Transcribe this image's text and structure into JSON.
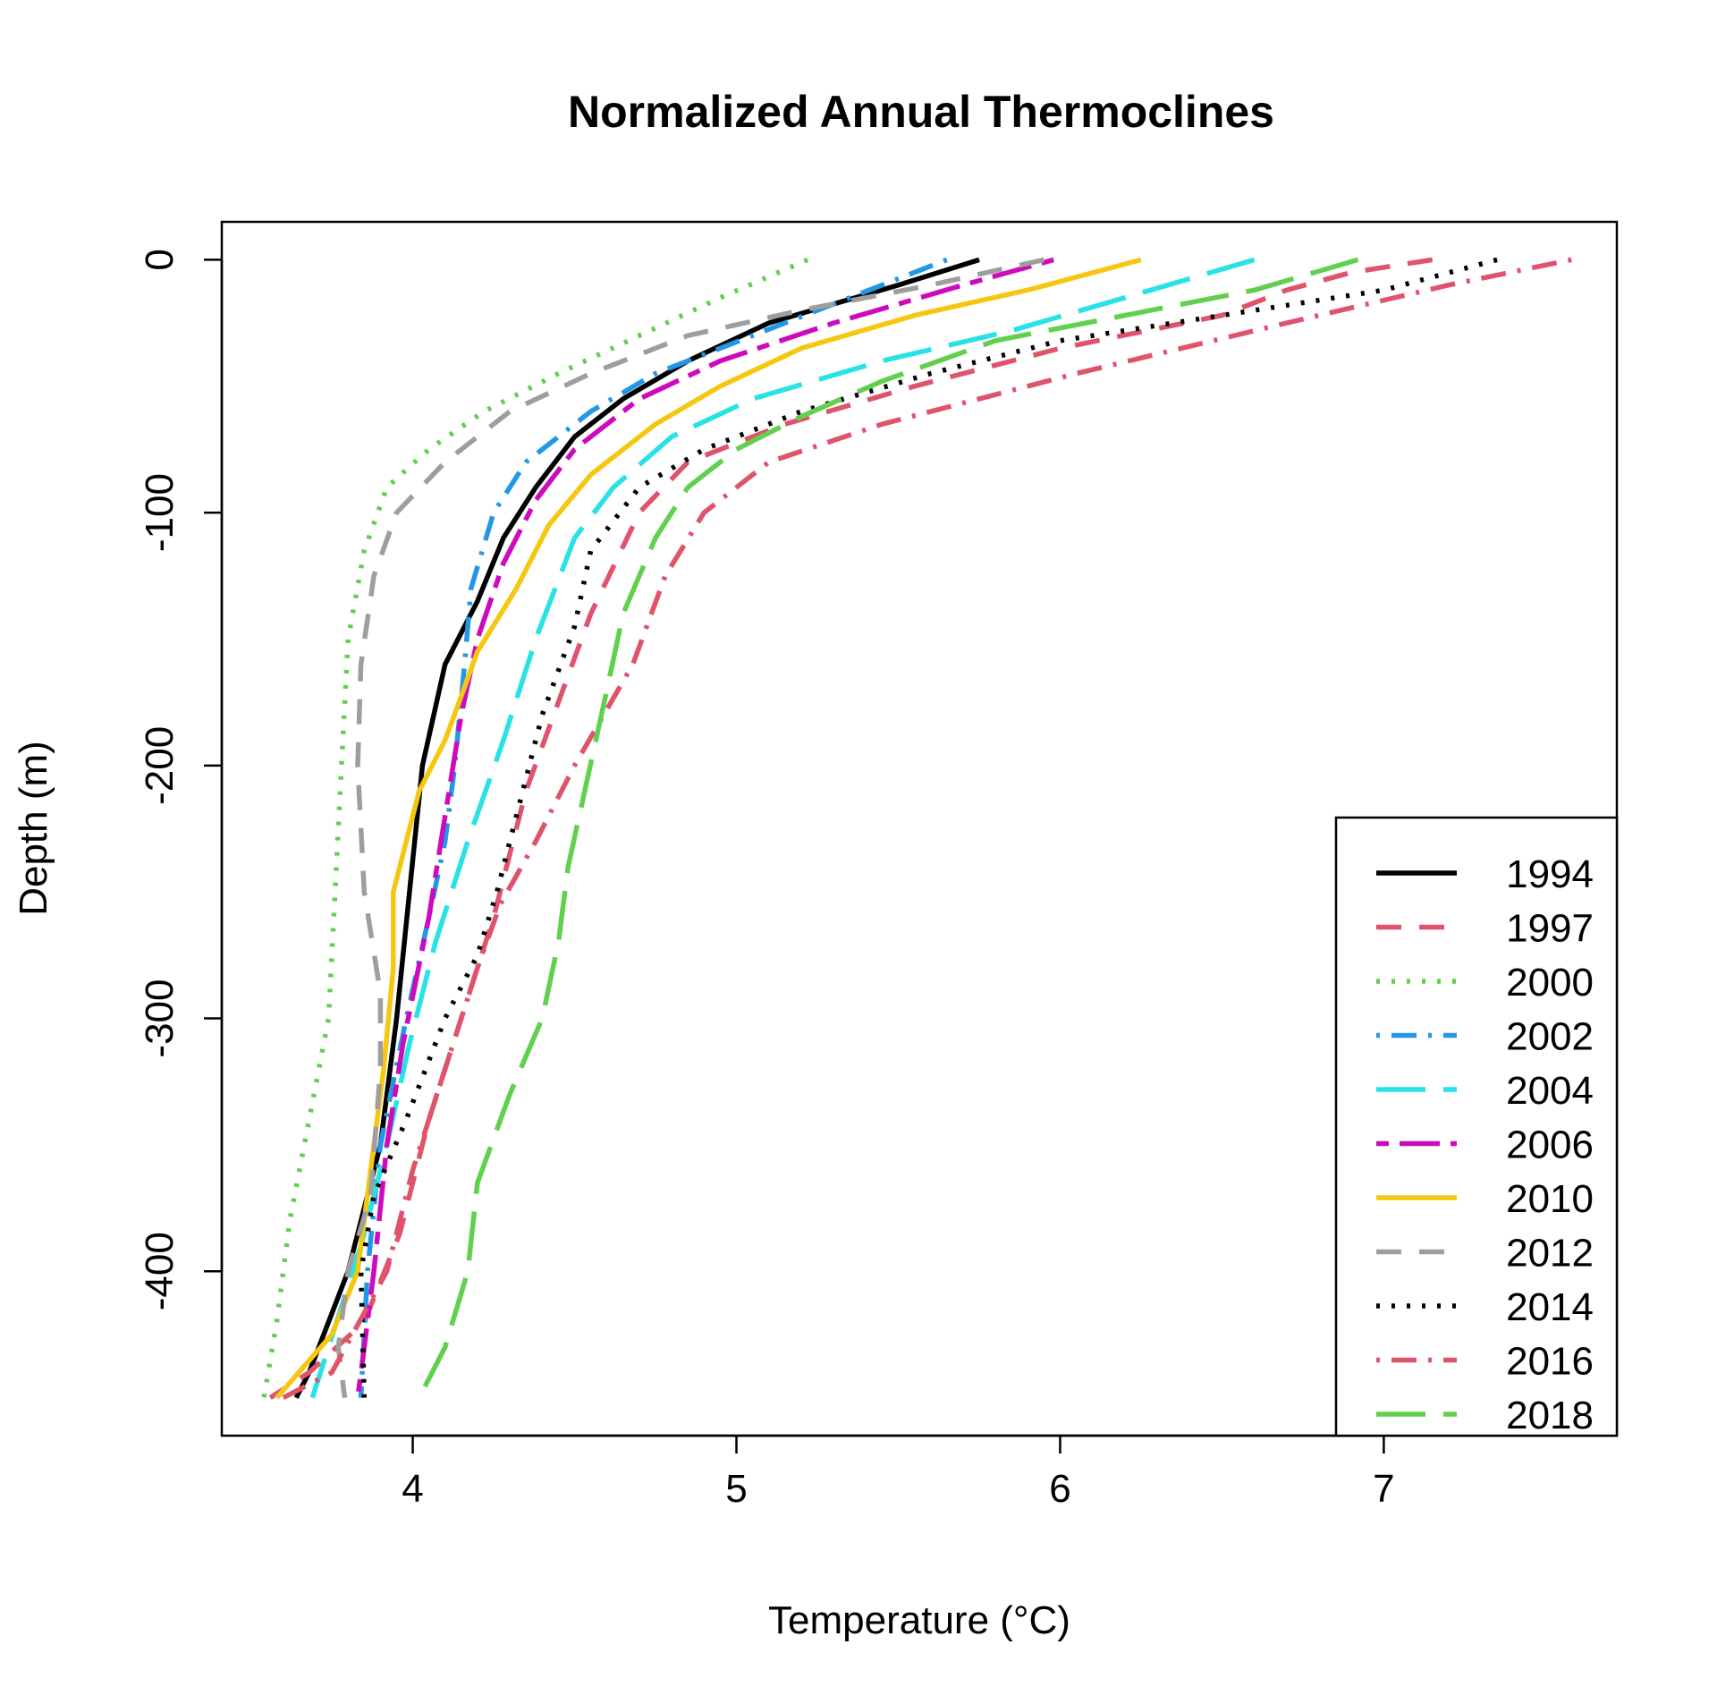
{
  "chart_data": {
    "type": "line",
    "title": "Normalized Annual Thermoclines",
    "xlabel": "Temperature (°C)",
    "ylabel": "Depth (m)",
    "xlim": [
      3.41,
      7.72
    ],
    "ylim": [
      -465,
      15
    ],
    "xticks": [
      4,
      5,
      6,
      7
    ],
    "yticks": [
      0,
      -100,
      -200,
      -300,
      -400
    ],
    "grid": false,
    "legend_position": "bottom-right",
    "series": [
      {
        "name": "1994",
        "color": "#000000",
        "dash": "solid",
        "points": [
          [
            5.75,
            0
          ],
          [
            5.5,
            -10
          ],
          [
            5.1,
            -25
          ],
          [
            4.85,
            -40
          ],
          [
            4.65,
            -55
          ],
          [
            4.5,
            -70
          ],
          [
            4.38,
            -90
          ],
          [
            4.28,
            -110
          ],
          [
            4.2,
            -135
          ],
          [
            4.1,
            -160
          ],
          [
            4.03,
            -200
          ],
          [
            3.99,
            -250
          ],
          [
            3.95,
            -300
          ],
          [
            3.9,
            -350
          ],
          [
            3.8,
            -400
          ],
          [
            3.68,
            -440
          ],
          [
            3.64,
            -450
          ]
        ]
      },
      {
        "name": "1997",
        "color": "#DF536B",
        "dash": "dashed",
        "points": [
          [
            7.15,
            0
          ],
          [
            6.9,
            -5
          ],
          [
            6.7,
            -12
          ],
          [
            6.5,
            -22
          ],
          [
            6.0,
            -35
          ],
          [
            5.55,
            -50
          ],
          [
            5.15,
            -65
          ],
          [
            4.85,
            -80
          ],
          [
            4.7,
            -100
          ],
          [
            4.55,
            -140
          ],
          [
            4.45,
            -175
          ],
          [
            4.35,
            -210
          ],
          [
            4.25,
            -260
          ],
          [
            4.15,
            -300
          ],
          [
            4.05,
            -340
          ],
          [
            3.96,
            -385
          ],
          [
            3.85,
            -420
          ],
          [
            3.68,
            -440
          ],
          [
            3.56,
            -450
          ]
        ]
      },
      {
        "name": "2000",
        "color": "#61D04F",
        "dash": "dotted",
        "points": [
          [
            5.22,
            0
          ],
          [
            4.95,
            -15
          ],
          [
            4.7,
            -30
          ],
          [
            4.45,
            -45
          ],
          [
            4.22,
            -60
          ],
          [
            4.05,
            -75
          ],
          [
            3.92,
            -90
          ],
          [
            3.85,
            -115
          ],
          [
            3.8,
            -150
          ],
          [
            3.78,
            -200
          ],
          [
            3.76,
            -250
          ],
          [
            3.74,
            -300
          ],
          [
            3.68,
            -340
          ],
          [
            3.62,
            -380
          ],
          [
            3.58,
            -420
          ],
          [
            3.54,
            -450
          ]
        ]
      },
      {
        "name": "2002",
        "color": "#2297E6",
        "dash": "dotdash",
        "points": [
          [
            5.65,
            0
          ],
          [
            5.35,
            -15
          ],
          [
            5.05,
            -30
          ],
          [
            4.75,
            -45
          ],
          [
            4.55,
            -60
          ],
          [
            4.35,
            -80
          ],
          [
            4.25,
            -100
          ],
          [
            4.18,
            -130
          ],
          [
            4.16,
            -160
          ],
          [
            4.13,
            -200
          ],
          [
            4.1,
            -230
          ],
          [
            4.05,
            -260
          ],
          [
            3.98,
            -300
          ],
          [
            3.9,
            -350
          ],
          [
            3.86,
            -400
          ],
          [
            3.84,
            -450
          ]
        ]
      },
      {
        "name": "2004",
        "color": "#28E2E5",
        "dash": "longdash",
        "points": [
          [
            6.6,
            0
          ],
          [
            6.2,
            -15
          ],
          [
            5.85,
            -28
          ],
          [
            5.45,
            -40
          ],
          [
            5.05,
            -55
          ],
          [
            4.8,
            -70
          ],
          [
            4.62,
            -90
          ],
          [
            4.5,
            -110
          ],
          [
            4.38,
            -150
          ],
          [
            4.28,
            -190
          ],
          [
            4.17,
            -230
          ],
          [
            4.07,
            -270
          ],
          [
            3.99,
            -310
          ],
          [
            3.92,
            -350
          ],
          [
            3.84,
            -390
          ],
          [
            3.74,
            -430
          ],
          [
            3.69,
            -450
          ]
        ]
      },
      {
        "name": "2006",
        "color": "#CD0BBC",
        "dash": "twodash",
        "points": [
          [
            5.98,
            0
          ],
          [
            5.7,
            -10
          ],
          [
            5.3,
            -25
          ],
          [
            4.95,
            -40
          ],
          [
            4.7,
            -55
          ],
          [
            4.5,
            -75
          ],
          [
            4.38,
            -95
          ],
          [
            4.28,
            -120
          ],
          [
            4.2,
            -150
          ],
          [
            4.15,
            -180
          ],
          [
            4.1,
            -220
          ],
          [
            4.05,
            -260
          ],
          [
            3.97,
            -310
          ],
          [
            3.92,
            -350
          ],
          [
            3.88,
            -400
          ],
          [
            3.85,
            -430
          ],
          [
            3.83,
            -450
          ]
        ]
      },
      {
        "name": "2010",
        "color": "#F5C710",
        "dash": "solid",
        "points": [
          [
            6.25,
            0
          ],
          [
            5.9,
            -12
          ],
          [
            5.55,
            -22
          ],
          [
            5.2,
            -35
          ],
          [
            4.95,
            -50
          ],
          [
            4.75,
            -65
          ],
          [
            4.55,
            -85
          ],
          [
            4.42,
            -105
          ],
          [
            4.32,
            -130
          ],
          [
            4.2,
            -155
          ],
          [
            4.1,
            -190
          ],
          [
            4.02,
            -210
          ],
          [
            3.98,
            -230
          ],
          [
            3.94,
            -250
          ],
          [
            3.94,
            -280
          ],
          [
            3.91,
            -320
          ],
          [
            3.87,
            -360
          ],
          [
            3.83,
            -400
          ],
          [
            3.75,
            -425
          ],
          [
            3.58,
            -450
          ]
        ]
      },
      {
        "name": "2012",
        "color": "#9E9E9E",
        "dash": "dashed",
        "points": [
          [
            5.95,
            0
          ],
          [
            5.6,
            -10
          ],
          [
            5.2,
            -20
          ],
          [
            4.85,
            -30
          ],
          [
            4.55,
            -45
          ],
          [
            4.3,
            -60
          ],
          [
            4.1,
            -80
          ],
          [
            3.95,
            -100
          ],
          [
            3.88,
            -125
          ],
          [
            3.84,
            -160
          ],
          [
            3.83,
            -200
          ],
          [
            3.85,
            -250
          ],
          [
            3.9,
            -290
          ],
          [
            3.9,
            -320
          ],
          [
            3.87,
            -370
          ],
          [
            3.8,
            -400
          ],
          [
            3.77,
            -430
          ],
          [
            3.79,
            -450
          ]
        ]
      },
      {
        "name": "2014",
        "color": "#000000",
        "dash": "dotted",
        "points": [
          [
            7.35,
            0
          ],
          [
            7.0,
            -12
          ],
          [
            6.5,
            -22
          ],
          [
            6.0,
            -32
          ],
          [
            5.6,
            -45
          ],
          [
            5.2,
            -60
          ],
          [
            4.9,
            -75
          ],
          [
            4.7,
            -90
          ],
          [
            4.55,
            -115
          ],
          [
            4.5,
            -145
          ],
          [
            4.4,
            -180
          ],
          [
            4.33,
            -215
          ],
          [
            4.26,
            -250
          ],
          [
            4.2,
            -275
          ],
          [
            4.1,
            -300
          ],
          [
            3.98,
            -340
          ],
          [
            3.88,
            -370
          ],
          [
            3.84,
            -400
          ],
          [
            3.85,
            -450
          ]
        ]
      },
      {
        "name": "2016",
        "color": "#DF536B",
        "dash": "dotdash",
        "points": [
          [
            7.58,
            0
          ],
          [
            7.2,
            -10
          ],
          [
            6.7,
            -25
          ],
          [
            6.05,
            -45
          ],
          [
            5.45,
            -65
          ],
          [
            5.1,
            -80
          ],
          [
            4.9,
            -100
          ],
          [
            4.78,
            -125
          ],
          [
            4.68,
            -160
          ],
          [
            4.5,
            -200
          ],
          [
            4.38,
            -230
          ],
          [
            4.27,
            -255
          ],
          [
            4.2,
            -280
          ],
          [
            4.1,
            -320
          ],
          [
            4.0,
            -360
          ],
          [
            3.92,
            -400
          ],
          [
            3.75,
            -440
          ],
          [
            3.6,
            -450
          ]
        ]
      },
      {
        "name": "2018",
        "color": "#61D04F",
        "dash": "longdash",
        "points": [
          [
            6.92,
            0
          ],
          [
            6.6,
            -12
          ],
          [
            6.2,
            -22
          ],
          [
            5.8,
            -32
          ],
          [
            5.45,
            -48
          ],
          [
            5.2,
            -62
          ],
          [
            5.0,
            -75
          ],
          [
            4.85,
            -90
          ],
          [
            4.75,
            -110
          ],
          [
            4.65,
            -140
          ],
          [
            4.6,
            -170
          ],
          [
            4.54,
            -205
          ],
          [
            4.48,
            -240
          ],
          [
            4.45,
            -270
          ],
          [
            4.4,
            -300
          ],
          [
            4.3,
            -330
          ],
          [
            4.2,
            -365
          ],
          [
            4.17,
            -400
          ],
          [
            4.1,
            -430
          ],
          [
            4.02,
            -450
          ]
        ]
      }
    ]
  }
}
